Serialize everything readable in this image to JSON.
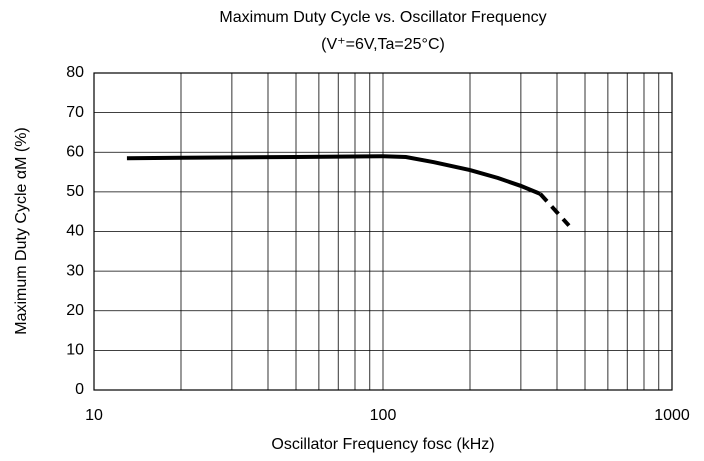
{
  "chart_data": {
    "type": "line",
    "title": "Maximum Duty Cycle vs. Oscillator Frequency",
    "subtitle": "(V⁺=6V,Ta=25°C)",
    "x_label": "Oscillator Frequency  fosc  (kHz)",
    "y_label": "Maximum Duty Cycle  αM  (%)",
    "xscale": "log",
    "xlim": [
      10,
      1000
    ],
    "xticks": [
      10,
      100,
      1000
    ],
    "xgrid_minor": [
      20,
      30,
      40,
      50,
      60,
      70,
      80,
      90,
      200,
      300,
      400,
      500,
      600,
      700,
      800,
      900
    ],
    "ylim": [
      0,
      80
    ],
    "yticks": [
      0,
      10,
      20,
      30,
      40,
      50,
      60,
      70,
      80
    ],
    "grid": true,
    "series": [
      {
        "color": "#000000",
        "style": "solid",
        "x": [
          13,
          20,
          50,
          100,
          120,
          150,
          200,
          250,
          300,
          350
        ],
        "values": [
          58.5,
          58.6,
          58.8,
          59,
          58.8,
          57.5,
          55.5,
          53.5,
          51.5,
          49.5
        ]
      },
      {
        "color": "#000000",
        "style": "dashed",
        "x": [
          350,
          440
        ],
        "values": [
          49.5,
          41.5
        ]
      }
    ]
  }
}
